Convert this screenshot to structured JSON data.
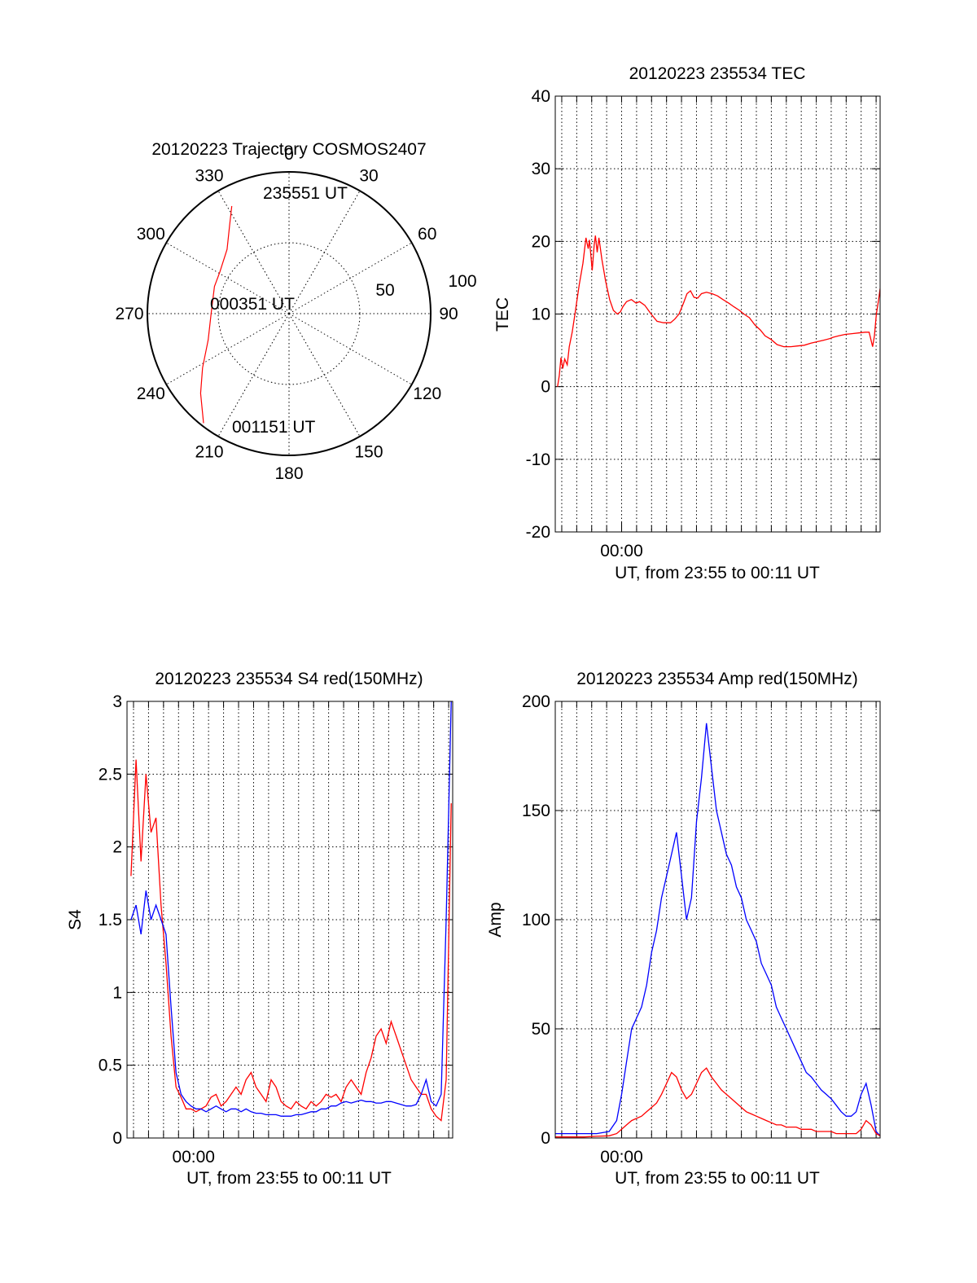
{
  "colors": {
    "red": "#ff0000",
    "blue": "#0000ff",
    "axis": "#000000",
    "background": "#ffffff"
  },
  "chart_data": [
    {
      "id": "trajectory",
      "type": "polar",
      "title": "20120223 Trajectory COSMOS2407",
      "angle_labels": [
        "0",
        "30",
        "60",
        "90",
        "120",
        "150",
        "180",
        "210",
        "240",
        "270",
        "300",
        "330"
      ],
      "angles_deg": [
        0,
        30,
        60,
        90,
        120,
        150,
        180,
        210,
        240,
        270,
        300,
        330
      ],
      "radial_labels": [
        "50",
        "100"
      ],
      "radial_values": [
        50,
        100
      ],
      "grid": "dotted",
      "series": [
        {
          "color": "#ff0000",
          "points_az_r": [
            [
              332,
              86
            ],
            [
              326,
              75
            ],
            [
              316,
              63
            ],
            [
              301,
              57
            ],
            [
              290,
              56
            ],
            [
              270,
              55
            ],
            [
              252,
              60
            ],
            [
              238,
              72
            ],
            [
              228,
              84
            ],
            [
              218,
              98
            ]
          ]
        }
      ],
      "annotations": [
        "235551 UT",
        "000351 UT",
        "001151 UT"
      ]
    },
    {
      "id": "tec",
      "type": "line",
      "title": "20120223 235534 TEC",
      "xlabel": "UT, from 23:55 to 00:11 UT",
      "ylabel": "TEC",
      "x_range_s": [
        -266,
        1036
      ],
      "x_tick_labels": [
        "00:00"
      ],
      "x_tick_values_s": [
        0
      ],
      "ylim": [
        -20,
        40
      ],
      "y_ticks": [
        "-20",
        "-10",
        "0",
        "10",
        "20",
        "30",
        "40"
      ],
      "grid": "dotted",
      "series": [
        {
          "color": "#ff0000",
          "x_s": [
            -257,
            -250,
            -243,
            -236,
            -228,
            -218,
            -210,
            -198,
            -187,
            -170,
            -155,
            -143,
            -134,
            -129,
            -123,
            -118,
            -110,
            -105,
            -98,
            -91,
            -79,
            -64,
            -48,
            -33,
            -17,
            -5,
            5,
            20,
            39,
            58,
            72,
            93,
            118,
            142,
            168,
            196,
            213,
            230,
            248,
            262,
            276,
            290,
            305,
            320,
            340,
            362,
            384,
            406,
            429,
            450,
            472,
            490,
            512,
            534,
            556,
            575,
            599,
            623,
            650,
            678,
            705,
            732,
            759,
            785,
            810,
            833,
            848,
            870,
            896,
            923,
            950,
            976,
            992,
            1006,
            1013,
            1021,
            1030,
            1036
          ],
          "y": [
            0,
            1.5,
            4,
            2.5,
            3.8,
            3,
            5.5,
            7.5,
            10,
            14,
            17,
            20.5,
            19,
            20.2,
            18,
            16,
            19.5,
            20.8,
            18.5,
            20.5,
            17.5,
            14.5,
            12,
            10.5,
            10,
            10.3,
            11,
            11.7,
            12,
            11.5,
            11.7,
            11.2,
            10,
            9,
            8.8,
            8.8,
            9.3,
            10,
            11.5,
            12.8,
            13.2,
            12.3,
            12.2,
            12.8,
            13,
            12.8,
            12.5,
            12,
            11.5,
            11,
            10.5,
            10,
            9.5,
            8.5,
            7.8,
            7,
            6.5,
            5.8,
            5.5,
            5.5,
            5.6,
            5.7,
            6,
            6.2,
            6.4,
            6.6,
            6.8,
            7.0,
            7.2,
            7.3,
            7.4,
            7.5,
            7.5,
            5.5,
            7.0,
            10,
            12,
            13.5
          ]
        }
      ]
    },
    {
      "id": "s4",
      "type": "line",
      "title": "20120223 235534 S4 red(150MHz)",
      "xlabel": "UT, from 23:55 to 00:11 UT",
      "ylabel": "S4",
      "x_range_s": [
        -266,
        1036
      ],
      "x_tick_labels": [
        "00:00"
      ],
      "x_tick_values_s": [
        0
      ],
      "ylim": [
        0,
        3
      ],
      "y_ticks": [
        "0",
        "0.5",
        "1",
        "1.5",
        "2",
        "2.5",
        "3"
      ],
      "grid": "dotted",
      "series": [
        {
          "name": "red",
          "color": "#ff0000",
          "x_s": [
            -250,
            -230,
            -210,
            -190,
            -170,
            -150,
            -130,
            -110,
            -90,
            -70,
            -50,
            -30,
            -10,
            10,
            30,
            50,
            70,
            90,
            110,
            130,
            150,
            170,
            190,
            210,
            230,
            250,
            270,
            290,
            310,
            330,
            350,
            370,
            390,
            410,
            430,
            450,
            470,
            490,
            510,
            530,
            550,
            570,
            590,
            610,
            630,
            650,
            670,
            690,
            710,
            730,
            750,
            770,
            790,
            810,
            830,
            850,
            870,
            890,
            910,
            930,
            950,
            970,
            990,
            1010,
            1030
          ],
          "y": [
            1.8,
            2.6,
            1.9,
            2.5,
            2.1,
            2.2,
            1.6,
            1.2,
            0.7,
            0.35,
            0.28,
            0.2,
            0.2,
            0.18,
            0.2,
            0.22,
            0.28,
            0.3,
            0.22,
            0.25,
            0.3,
            0.35,
            0.3,
            0.4,
            0.45,
            0.35,
            0.3,
            0.25,
            0.4,
            0.35,
            0.25,
            0.22,
            0.2,
            0.25,
            0.22,
            0.2,
            0.25,
            0.22,
            0.25,
            0.3,
            0.28,
            0.3,
            0.25,
            0.35,
            0.4,
            0.35,
            0.3,
            0.45,
            0.55,
            0.7,
            0.75,
            0.65,
            0.8,
            0.7,
            0.6,
            0.5,
            0.4,
            0.35,
            0.3,
            0.3,
            0.2,
            0.15,
            0.12,
            0.4,
            2.3
          ]
        },
        {
          "name": "blue",
          "color": "#0000ff",
          "x_s": [
            -250,
            -230,
            -210,
            -190,
            -170,
            -150,
            -130,
            -110,
            -90,
            -70,
            -50,
            -30,
            -10,
            10,
            30,
            50,
            70,
            90,
            110,
            130,
            150,
            170,
            190,
            210,
            230,
            250,
            270,
            290,
            310,
            330,
            350,
            370,
            390,
            410,
            430,
            450,
            470,
            490,
            510,
            530,
            550,
            570,
            590,
            610,
            630,
            650,
            670,
            690,
            710,
            730,
            750,
            770,
            790,
            810,
            830,
            850,
            870,
            890,
            910,
            930,
            950,
            970,
            990,
            1010,
            1030
          ],
          "y": [
            1.5,
            1.6,
            1.4,
            1.7,
            1.5,
            1.6,
            1.5,
            1.4,
            0.9,
            0.45,
            0.3,
            0.25,
            0.22,
            0.2,
            0.2,
            0.18,
            0.2,
            0.22,
            0.2,
            0.18,
            0.2,
            0.2,
            0.18,
            0.2,
            0.18,
            0.17,
            0.17,
            0.16,
            0.16,
            0.16,
            0.15,
            0.15,
            0.15,
            0.16,
            0.16,
            0.17,
            0.18,
            0.18,
            0.2,
            0.2,
            0.22,
            0.22,
            0.24,
            0.25,
            0.24,
            0.25,
            0.26,
            0.25,
            0.25,
            0.24,
            0.24,
            0.25,
            0.25,
            0.24,
            0.23,
            0.22,
            0.22,
            0.23,
            0.3,
            0.4,
            0.25,
            0.22,
            0.3,
            1.5,
            3.0
          ]
        }
      ]
    },
    {
      "id": "amp",
      "type": "line",
      "title": "20120223 235534 Amp red(150MHz)",
      "xlabel": "UT, from 23:55 to 00:11 UT",
      "ylabel": "Amp",
      "x_range_s": [
        -266,
        1036
      ],
      "x_tick_labels": [
        "00:00"
      ],
      "x_tick_values_s": [
        0
      ],
      "ylim": [
        0,
        200
      ],
      "y_ticks": [
        "0",
        "50",
        "100",
        "150",
        "200"
      ],
      "grid": "dotted",
      "series": [
        {
          "name": "blue",
          "color": "#0000ff",
          "x_s": [
            -266,
            -200,
            -150,
            -100,
            -50,
            -20,
            0,
            20,
            40,
            60,
            80,
            100,
            120,
            140,
            160,
            180,
            200,
            220,
            240,
            260,
            280,
            300,
            320,
            340,
            360,
            380,
            400,
            420,
            440,
            460,
            480,
            500,
            520,
            540,
            560,
            580,
            600,
            620,
            640,
            660,
            680,
            700,
            720,
            740,
            760,
            780,
            800,
            820,
            840,
            860,
            880,
            900,
            920,
            940,
            960,
            980,
            1000,
            1020,
            1036
          ],
          "y": [
            2,
            2,
            2,
            2,
            3,
            8,
            20,
            35,
            50,
            55,
            60,
            70,
            85,
            95,
            110,
            120,
            130,
            140,
            120,
            100,
            110,
            145,
            165,
            190,
            170,
            150,
            140,
            130,
            125,
            115,
            110,
            100,
            95,
            90,
            80,
            75,
            70,
            60,
            55,
            50,
            45,
            40,
            35,
            30,
            28,
            25,
            22,
            20,
            18,
            15,
            12,
            10,
            10,
            12,
            20,
            25,
            15,
            3,
            1
          ]
        },
        {
          "name": "red",
          "color": "#ff0000",
          "x_s": [
            -266,
            -200,
            -150,
            -100,
            -50,
            -20,
            0,
            20,
            40,
            60,
            80,
            100,
            120,
            140,
            160,
            180,
            200,
            220,
            240,
            260,
            280,
            300,
            320,
            340,
            360,
            380,
            400,
            420,
            440,
            460,
            480,
            500,
            520,
            540,
            560,
            580,
            600,
            620,
            640,
            660,
            680,
            700,
            720,
            740,
            760,
            780,
            800,
            820,
            840,
            860,
            880,
            900,
            920,
            940,
            960,
            980,
            1000,
            1020,
            1036
          ],
          "y": [
            0.5,
            0.5,
            0.5,
            0.8,
            1,
            2,
            4,
            6,
            8,
            9,
            10,
            12,
            14,
            16,
            20,
            25,
            30,
            28,
            22,
            18,
            20,
            25,
            30,
            32,
            28,
            25,
            22,
            20,
            18,
            16,
            14,
            12,
            11,
            10,
            9,
            8,
            7,
            6,
            6,
            5,
            5,
            5,
            4,
            4,
            4,
            3,
            3,
            3,
            3,
            2,
            2,
            2,
            2,
            2,
            4,
            8,
            6,
            2,
            1
          ]
        }
      ]
    }
  ]
}
